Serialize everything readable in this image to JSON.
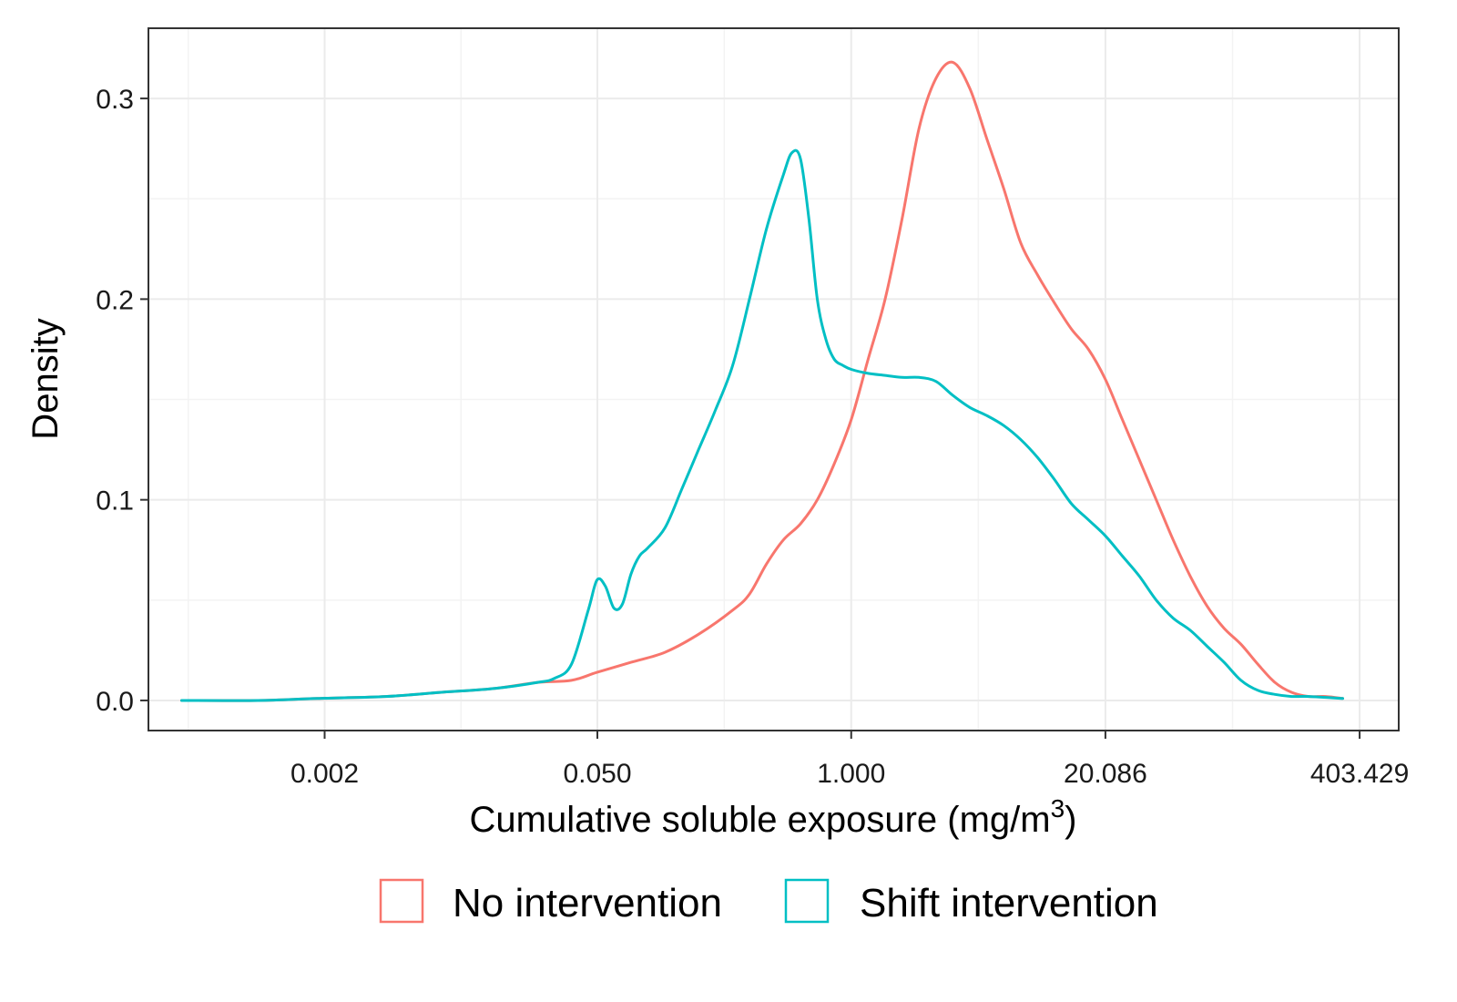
{
  "chart_data": {
    "type": "line",
    "xlabel": "Cumulative soluble exposure (mg/m",
    "xlabel_superscript": "3",
    "xlabel_suffix": ")",
    "ylabel": "Density",
    "x_scale": "log",
    "x_ticks": [
      0.002,
      0.05,
      1.0,
      20.086,
      403.429
    ],
    "x_tick_labels": [
      "0.002",
      "0.050",
      "1.000",
      "20.086",
      "403.429"
    ],
    "xlim": [
      0.00025,
      640
    ],
    "ylim": [
      -0.015,
      0.335
    ],
    "y_ticks": [
      0.0,
      0.1,
      0.2,
      0.3
    ],
    "y_tick_labels": [
      "0.0",
      "0.1",
      "0.2",
      "0.3"
    ],
    "grid": true,
    "legend_position": "bottom",
    "series": [
      {
        "name": "No intervention",
        "color": "#F8766D",
        "points": [
          [
            0.00037,
            0.0
          ],
          [
            0.00091,
            0.0
          ],
          [
            0.00183,
            0.001
          ],
          [
            0.0041,
            0.002
          ],
          [
            0.0078,
            0.004
          ],
          [
            0.0149,
            0.006
          ],
          [
            0.0247,
            0.009
          ],
          [
            0.0368,
            0.01
          ],
          [
            0.0498,
            0.014
          ],
          [
            0.0743,
            0.019
          ],
          [
            0.111,
            0.024
          ],
          [
            0.165,
            0.033
          ],
          [
            0.247,
            0.045
          ],
          [
            0.301,
            0.053
          ],
          [
            0.368,
            0.068
          ],
          [
            0.449,
            0.08
          ],
          [
            0.549,
            0.088
          ],
          [
            0.67,
            0.1
          ],
          [
            0.819,
            0.118
          ],
          [
            1.0,
            0.14
          ],
          [
            1.221,
            0.17
          ],
          [
            1.492,
            0.2
          ],
          [
            1.822,
            0.24
          ],
          [
            2.226,
            0.285
          ],
          [
            2.718,
            0.31
          ],
          [
            3.32,
            0.318
          ],
          [
            4.055,
            0.305
          ],
          [
            4.953,
            0.28
          ],
          [
            6.05,
            0.255
          ],
          [
            7.389,
            0.228
          ],
          [
            9.025,
            0.212
          ],
          [
            11.02,
            0.198
          ],
          [
            13.46,
            0.185
          ],
          [
            16.44,
            0.175
          ],
          [
            20.09,
            0.16
          ],
          [
            24.53,
            0.14
          ],
          [
            29.96,
            0.12
          ],
          [
            36.6,
            0.1
          ],
          [
            44.7,
            0.08
          ],
          [
            54.6,
            0.062
          ],
          [
            66.69,
            0.047
          ],
          [
            81.45,
            0.036
          ],
          [
            99.48,
            0.028
          ],
          [
            121.5,
            0.018
          ],
          [
            148.4,
            0.009
          ],
          [
            181.3,
            0.004
          ],
          [
            221.4,
            0.002
          ],
          [
            270.4,
            0.002
          ],
          [
            330.3,
            0.001
          ]
        ]
      },
      {
        "name": "Shift intervention",
        "color": "#00BFC4",
        "points": [
          [
            0.00037,
            0.0
          ],
          [
            0.00091,
            0.0
          ],
          [
            0.00183,
            0.001
          ],
          [
            0.0041,
            0.002
          ],
          [
            0.0078,
            0.004
          ],
          [
            0.0149,
            0.006
          ],
          [
            0.0247,
            0.009
          ],
          [
            0.0301,
            0.011
          ],
          [
            0.0368,
            0.018
          ],
          [
            0.0449,
            0.045
          ],
          [
            0.0498,
            0.06
          ],
          [
            0.0549,
            0.057
          ],
          [
            0.0608,
            0.046
          ],
          [
            0.0672,
            0.048
          ],
          [
            0.0743,
            0.063
          ],
          [
            0.0821,
            0.072
          ],
          [
            0.0907,
            0.076
          ],
          [
            0.111,
            0.086
          ],
          [
            0.135,
            0.105
          ],
          [
            0.165,
            0.125
          ],
          [
            0.202,
            0.145
          ],
          [
            0.247,
            0.167
          ],
          [
            0.301,
            0.2
          ],
          [
            0.368,
            0.235
          ],
          [
            0.449,
            0.262
          ],
          [
            0.497,
            0.273
          ],
          [
            0.549,
            0.27
          ],
          [
            0.607,
            0.24
          ],
          [
            0.67,
            0.2
          ],
          [
            0.741,
            0.18
          ],
          [
            0.819,
            0.17
          ],
          [
            0.905,
            0.167
          ],
          [
            1.0,
            0.165
          ],
          [
            1.221,
            0.163
          ],
          [
            1.492,
            0.162
          ],
          [
            1.822,
            0.161
          ],
          [
            2.226,
            0.161
          ],
          [
            2.718,
            0.159
          ],
          [
            3.32,
            0.152
          ],
          [
            4.055,
            0.146
          ],
          [
            4.953,
            0.142
          ],
          [
            6.05,
            0.137
          ],
          [
            7.389,
            0.13
          ],
          [
            9.025,
            0.121
          ],
          [
            11.02,
            0.11
          ],
          [
            13.46,
            0.098
          ],
          [
            16.44,
            0.09
          ],
          [
            20.09,
            0.082
          ],
          [
            24.53,
            0.072
          ],
          [
            29.96,
            0.062
          ],
          [
            36.6,
            0.05
          ],
          [
            44.7,
            0.041
          ],
          [
            54.6,
            0.035
          ],
          [
            66.69,
            0.027
          ],
          [
            81.45,
            0.019
          ],
          [
            99.48,
            0.01
          ],
          [
            121.5,
            0.005
          ],
          [
            148.4,
            0.003
          ],
          [
            181.3,
            0.002
          ],
          [
            221.4,
            0.002
          ],
          [
            330.3,
            0.001
          ]
        ]
      }
    ]
  }
}
